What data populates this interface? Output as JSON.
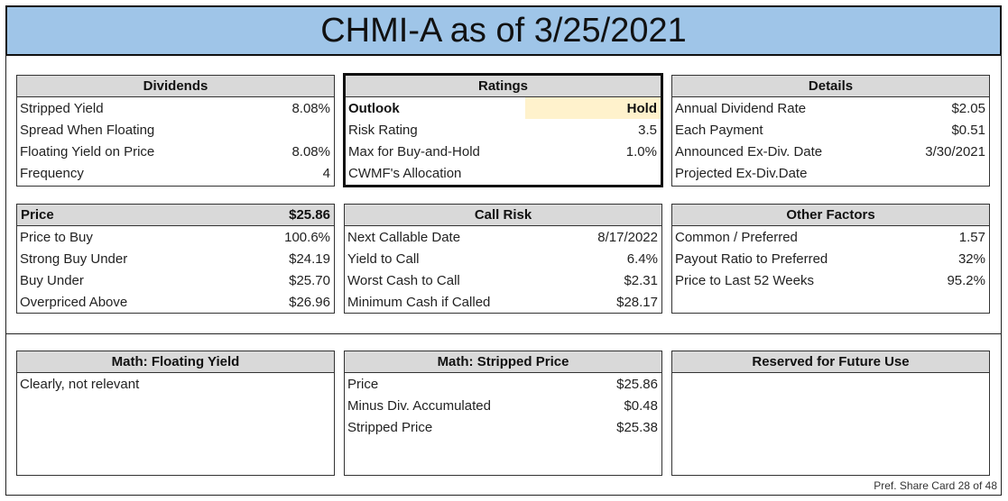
{
  "title": "CHMI-A as of 3/25/2021",
  "dividends": {
    "header": "Dividends",
    "rows": [
      {
        "label": "Stripped Yield",
        "value": "8.08%"
      },
      {
        "label": "Spread When Floating",
        "value": ""
      },
      {
        "label": "Floating Yield on Price",
        "value": "8.08%"
      },
      {
        "label": "Frequency",
        "value": "4"
      }
    ]
  },
  "ratings": {
    "header": "Ratings",
    "rows": [
      {
        "label": "Outlook",
        "value": "Hold"
      },
      {
        "label": "Risk Rating",
        "value": "3.5"
      },
      {
        "label": "Max for Buy-and-Hold",
        "value": "1.0%"
      },
      {
        "label": "CWMF's Allocation",
        "value": ""
      }
    ]
  },
  "details": {
    "header": "Details",
    "rows": [
      {
        "label": "Annual Dividend Rate",
        "value": "$2.05"
      },
      {
        "label": "Each Payment",
        "value": "$0.51"
      },
      {
        "label": "Announced Ex-Div. Date",
        "value": "3/30/2021"
      },
      {
        "label": "Projected Ex-Div.Date",
        "value": ""
      }
    ]
  },
  "price": {
    "header_label": "Price",
    "header_value": "$25.86",
    "rows": [
      {
        "label": "Price to Buy",
        "value": "100.6%"
      },
      {
        "label": "Strong Buy Under",
        "value": "$24.19"
      },
      {
        "label": "Buy Under",
        "value": "$25.70"
      },
      {
        "label": "Overpriced Above",
        "value": "$26.96"
      }
    ]
  },
  "call_risk": {
    "header": "Call Risk",
    "rows": [
      {
        "label": "Next Callable Date",
        "value": "8/17/2022"
      },
      {
        "label": "Yield to Call",
        "value": "6.4%"
      },
      {
        "label": "Worst Cash to Call",
        "value": "$2.31"
      },
      {
        "label": "Minimum Cash if Called",
        "value": "$28.17"
      }
    ]
  },
  "other_factors": {
    "header": "Other Factors",
    "rows": [
      {
        "label": "Common / Preferred",
        "value": "1.57"
      },
      {
        "label": "Payout Ratio to Preferred",
        "value": "32%"
      },
      {
        "label": "Price to Last 52 Weeks",
        "value": "95.2%"
      }
    ]
  },
  "math_floating": {
    "header": "Math: Floating Yield",
    "text": "Clearly, not relevant"
  },
  "math_stripped": {
    "header": "Math: Stripped Price",
    "rows": [
      {
        "label": "Price",
        "value": "$25.86"
      },
      {
        "label": "Minus Div. Accumulated",
        "value": "$0.48"
      },
      {
        "label": "Stripped Price",
        "value": "$25.38"
      }
    ]
  },
  "reserved": {
    "header": "Reserved for Future Use"
  },
  "footer": "Pref. Share Card 28 of 48"
}
